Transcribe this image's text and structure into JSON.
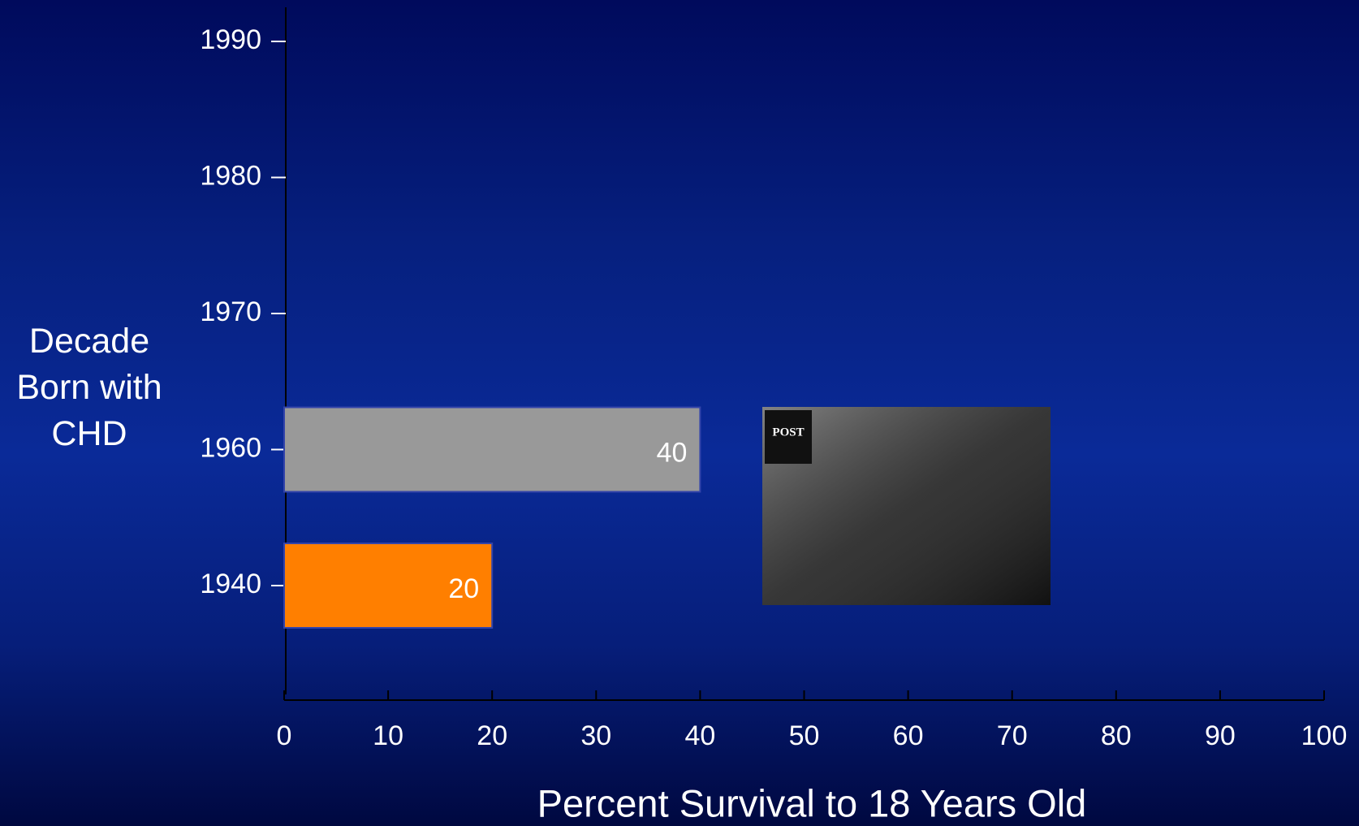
{
  "chart_data": {
    "type": "barh",
    "xlabel": "Percent Survival to 18 Years Old",
    "ylabel": "Decade Born with CHD",
    "categories": [
      "1940",
      "1960",
      "1970",
      "1980",
      "1990"
    ],
    "values": [
      20,
      40,
      null,
      null,
      null
    ],
    "colors": [
      "#ff7f00",
      "#999999",
      null,
      null,
      null
    ],
    "xlim": [
      0,
      100
    ],
    "xticks": [
      0,
      10,
      20,
      30,
      40,
      50,
      60,
      70,
      80,
      90,
      100
    ],
    "image_text": "POST"
  }
}
